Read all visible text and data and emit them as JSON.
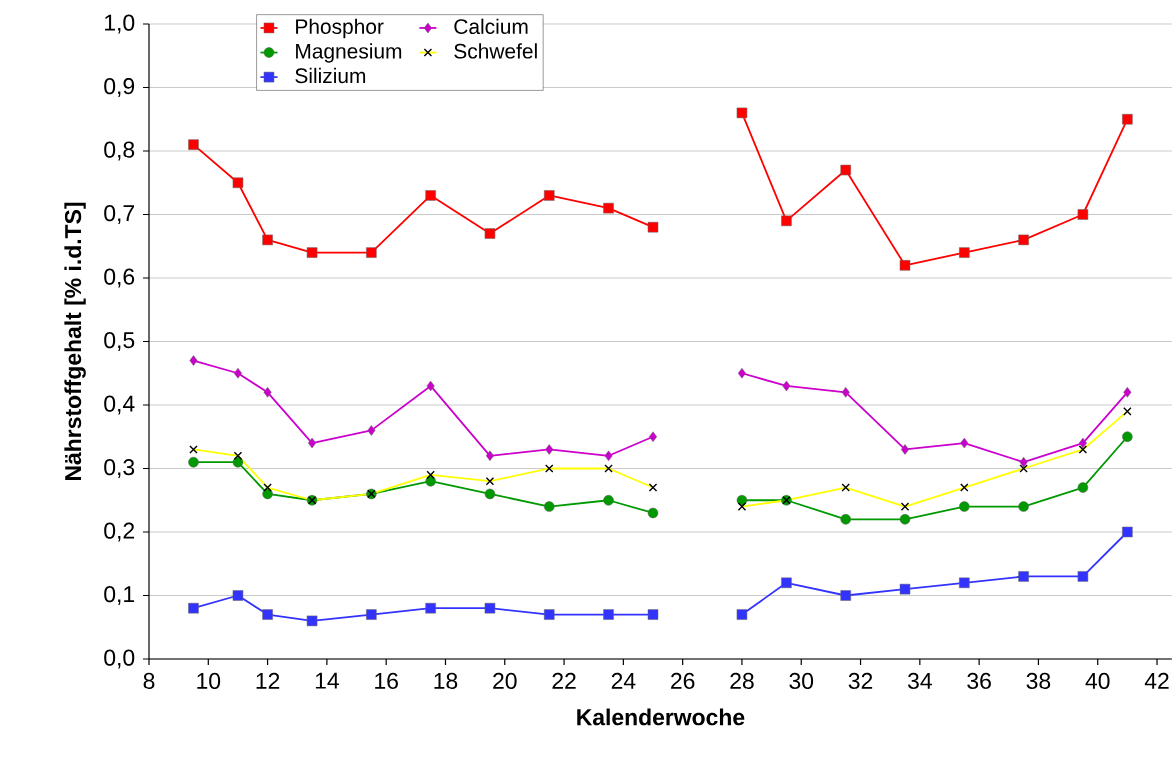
{
  "chart_data": {
    "type": "line",
    "xlabel": "Kalenderwoche",
    "ylabel": "Nährstoffgehalt [% i.d.TS]",
    "x": [
      9.5,
      11,
      12,
      13.5,
      15.5,
      17.5,
      19.5,
      21.5,
      23.5,
      25,
      26.5,
      28,
      29.5,
      31.5,
      33.5,
      35.5,
      37.5,
      39.5,
      41
    ],
    "series": [
      {
        "name": "Phosphor",
        "color": "#ff0000",
        "marker": "square",
        "values": [
          0.81,
          0.75,
          0.66,
          0.64,
          0.64,
          0.73,
          0.67,
          0.73,
          0.71,
          0.68,
          null,
          0.86,
          0.69,
          0.77,
          0.62,
          0.64,
          0.66,
          0.7,
          0.85
        ]
      },
      {
        "name": "Calcium",
        "color": "#cc00cc",
        "marker": "diamond",
        "values": [
          0.47,
          0.45,
          0.42,
          0.34,
          0.36,
          0.43,
          0.32,
          0.33,
          0.32,
          0.35,
          null,
          0.45,
          0.43,
          0.42,
          0.33,
          0.34,
          0.31,
          0.34,
          0.42
        ]
      },
      {
        "name": "Magnesium",
        "color": "#009900",
        "marker": "circle",
        "values": [
          0.31,
          0.31,
          0.26,
          0.25,
          0.26,
          0.28,
          0.26,
          0.24,
          0.25,
          0.23,
          null,
          0.25,
          0.25,
          0.22,
          0.22,
          0.24,
          0.24,
          0.27,
          0.35
        ]
      },
      {
        "name": "Schwefel",
        "color": "#ffff00",
        "marker": "cross",
        "values": [
          0.33,
          0.32,
          0.27,
          0.25,
          0.26,
          0.29,
          0.28,
          0.3,
          0.3,
          0.27,
          null,
          0.24,
          0.25,
          0.27,
          0.24,
          0.27,
          0.3,
          0.33,
          0.39
        ]
      },
      {
        "name": "Silizium",
        "color": "#3333ff",
        "marker": "square",
        "values": [
          0.08,
          0.1,
          0.07,
          0.06,
          0.07,
          0.08,
          0.08,
          0.07,
          0.07,
          0.07,
          null,
          0.07,
          0.12,
          0.1,
          0.11,
          0.12,
          0.13,
          0.13,
          0.2
        ]
      }
    ],
    "xlim": [
      8,
      42.5
    ],
    "xticks": [
      8,
      10,
      12,
      14,
      16,
      18,
      20,
      22,
      24,
      26,
      28,
      30,
      32,
      34,
      36,
      38,
      40,
      42
    ],
    "ylim": [
      0,
      1
    ],
    "yticks": [
      {
        "value": 0,
        "label": "0,0"
      },
      {
        "value": 0.1,
        "label": "0,1"
      },
      {
        "value": 0.2,
        "label": "0,2"
      },
      {
        "value": 0.3,
        "label": "0,3"
      },
      {
        "value": 0.4,
        "label": "0,4"
      },
      {
        "value": 0.5,
        "label": "0,5"
      },
      {
        "value": 0.6,
        "label": "0,6"
      },
      {
        "value": 0.7,
        "label": "0,7"
      },
      {
        "value": 0.8,
        "label": "0,8"
      },
      {
        "value": 0.9,
        "label": "0,9"
      },
      {
        "value": 1,
        "label": "1,0"
      }
    ],
    "grid": "y",
    "legend": "top left",
    "line_style": "solid"
  }
}
